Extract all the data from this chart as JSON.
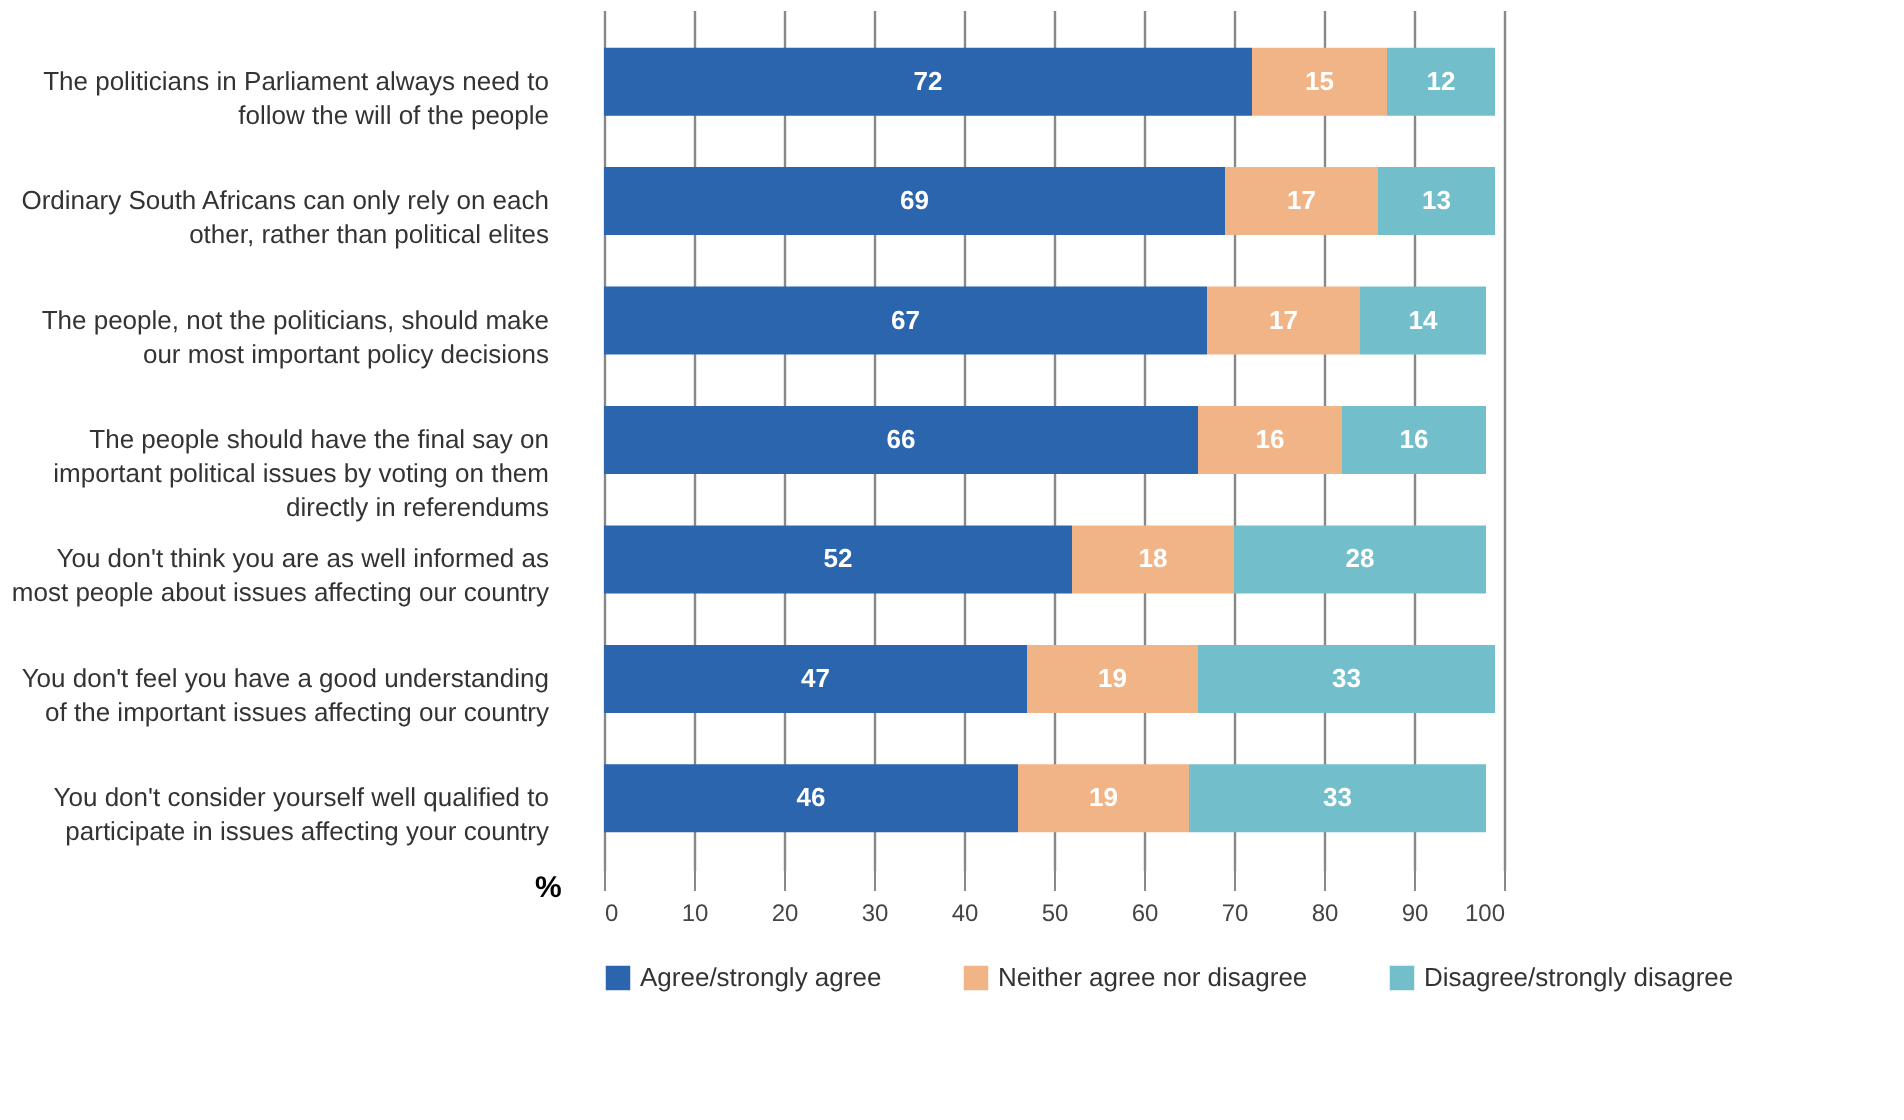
{
  "chart_data": {
    "type": "bar",
    "orientation": "horizontal",
    "stacked": true,
    "xlabel": "%",
    "categories": [
      "The politicians in Parliament always need to follow the will of the people",
      "Ordinary South Africans can only rely on each other, rather than political elites",
      "The people, not the politicians, should make our most important policy decisions",
      "The people should have the final say on important political issues by voting on them directly in referendums",
      "You don't think you are as well informed as most people about issues affecting our country",
      "You don't feel you have a good understanding of the important issues affecting our country",
      "You don't consider yourself well qualified to participate in issues affecting your country"
    ],
    "series": [
      {
        "name": "Agree/strongly agree",
        "color": "#2a65ad",
        "values": [
          72,
          69,
          67,
          66,
          52,
          47,
          46
        ]
      },
      {
        "name": "Neither agree nor disagree",
        "color": "#f1b487",
        "values": [
          15,
          17,
          17,
          16,
          18,
          19,
          19
        ]
      },
      {
        "name": "Disagree/strongly disagree",
        "color": "#72bfcb",
        "values": [
          12,
          13,
          14,
          16,
          28,
          33,
          33
        ]
      }
    ],
    "xlim": [
      0,
      100
    ],
    "xticks": [
      0,
      10,
      20,
      30,
      40,
      50,
      60,
      70,
      80,
      90,
      100
    ],
    "grid": "x",
    "legend": "bottom",
    "data_labels": true
  }
}
